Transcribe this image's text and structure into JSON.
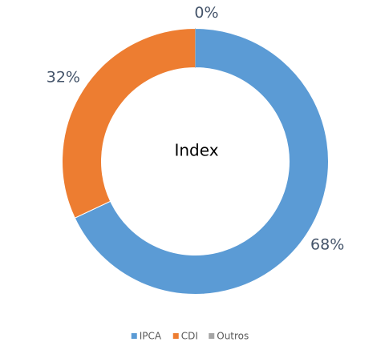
{
  "chart_data": {
    "type": "donut",
    "title": "Index",
    "series": [
      {
        "name": "IPCA",
        "color": "#5b9bd5",
        "values": [
          68
        ],
        "value_labels": [
          "68%"
        ]
      },
      {
        "name": "CDI",
        "color": "#ed7d31",
        "values": [
          32
        ],
        "value_labels": [
          "32%"
        ]
      },
      {
        "name": "Outros",
        "color": "#a5a5a5",
        "values": [
          0
        ],
        "value_labels": [
          "0%"
        ]
      }
    ],
    "legend": "bottom"
  }
}
